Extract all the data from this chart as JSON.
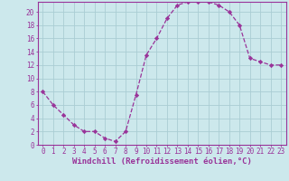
{
  "x": [
    0,
    1,
    2,
    3,
    4,
    5,
    6,
    7,
    8,
    9,
    10,
    11,
    12,
    13,
    14,
    15,
    16,
    17,
    18,
    19,
    20,
    21,
    22,
    23
  ],
  "y": [
    8,
    6,
    4.5,
    3,
    2,
    2,
    1,
    0.5,
    2,
    7.5,
    13.5,
    16,
    19,
    21,
    21.5,
    21.5,
    21.5,
    21,
    20,
    18,
    13,
    12.5,
    12,
    12
  ],
  "line_color": "#993399",
  "marker": "D",
  "marker_size": 2.2,
  "bg_color": "#cce8ec",
  "grid_color": "#aacdd4",
  "xlabel": "Windchill (Refroidissement éolien,°C)",
  "xlim_min": -0.5,
  "xlim_max": 23.5,
  "ylim_min": 0,
  "ylim_max": 21.5,
  "xticks": [
    0,
    1,
    2,
    3,
    4,
    5,
    6,
    7,
    8,
    9,
    10,
    11,
    12,
    13,
    14,
    15,
    16,
    17,
    18,
    19,
    20,
    21,
    22,
    23
  ],
  "yticks": [
    0,
    2,
    4,
    6,
    8,
    10,
    12,
    14,
    16,
    18,
    20
  ],
  "tick_color": "#993399",
  "label_fontsize": 6.5,
  "tick_fontsize": 5.5,
  "spine_color": "#993399",
  "line_width": 0.9
}
